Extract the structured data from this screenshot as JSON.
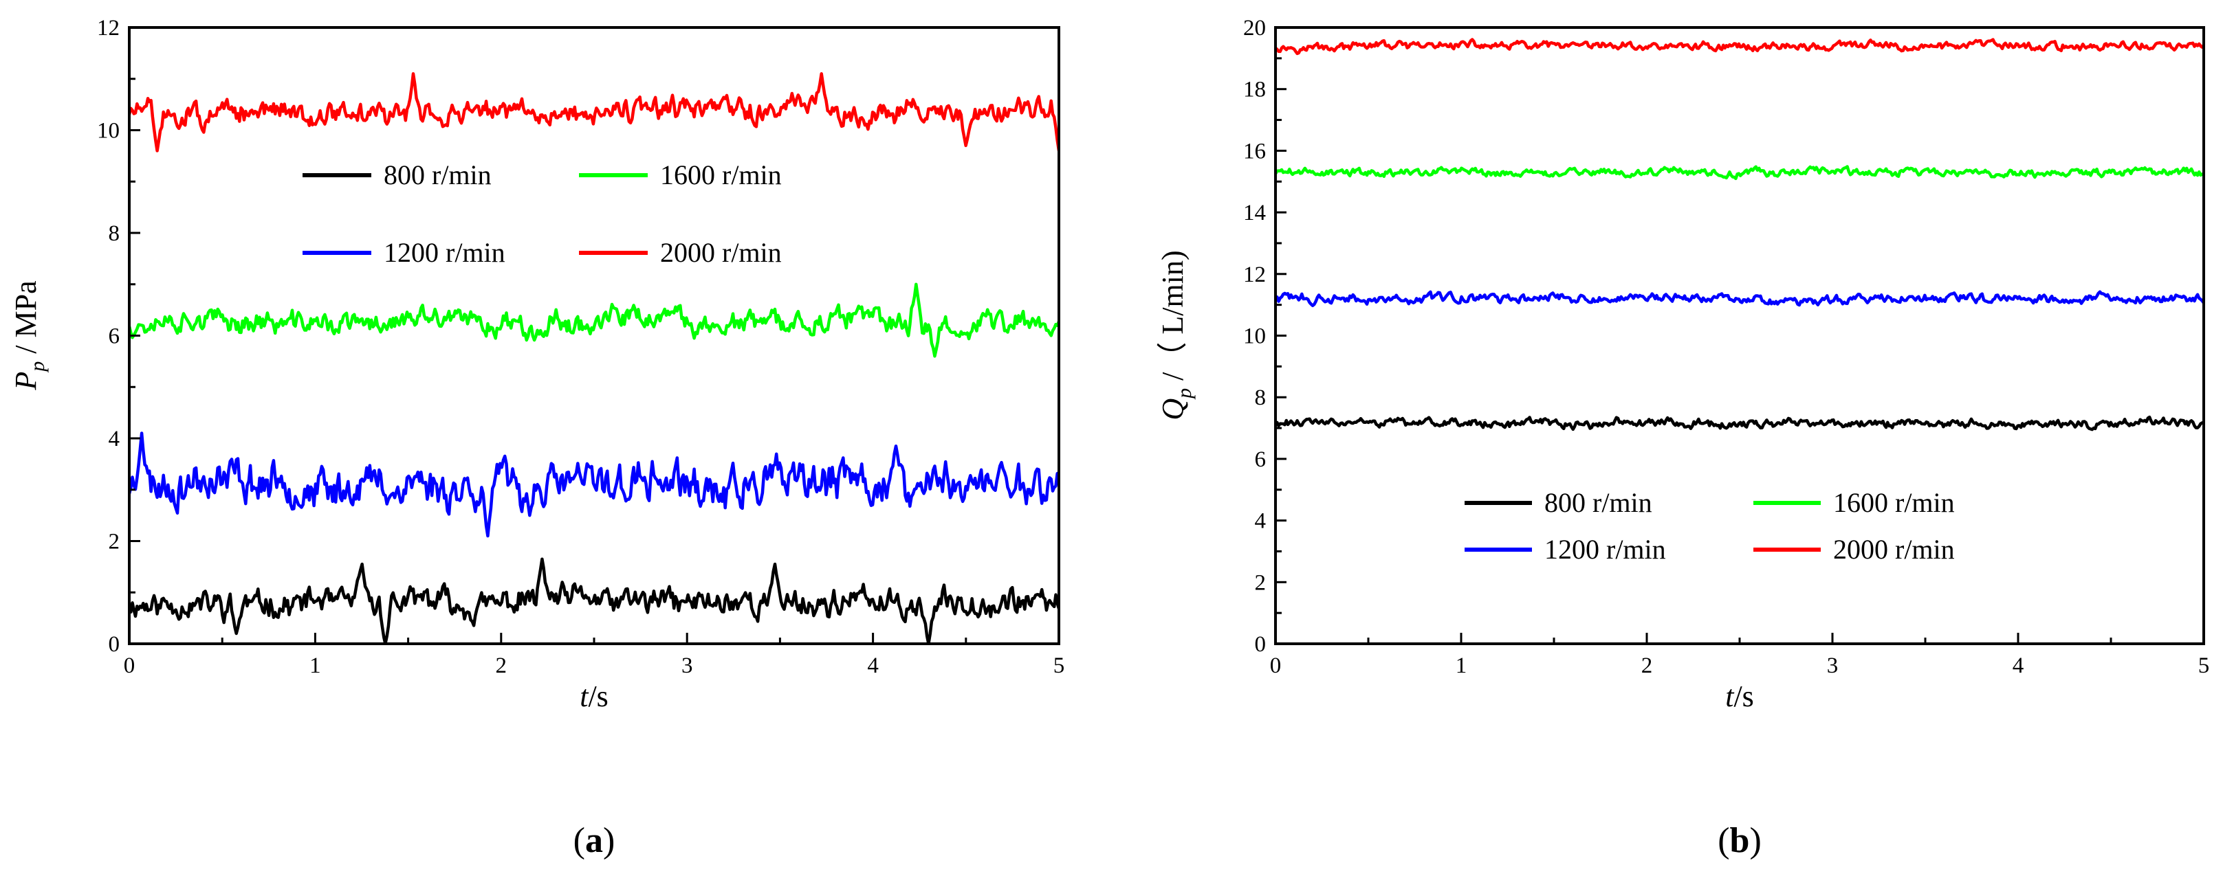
{
  "chart_data": [
    {
      "type": "line",
      "panel_label": "a",
      "xlabel_var": "t",
      "xlabel_unit": "/s",
      "ylabel_var": "P",
      "ylabel_sub": "p",
      "ylabel_unit": " / MPa",
      "xlim": [
        0,
        5
      ],
      "ylim": [
        0,
        12
      ],
      "xticks": [
        0,
        1,
        2,
        3,
        4,
        5
      ],
      "yticks": [
        0,
        2,
        4,
        6,
        8,
        10,
        12
      ],
      "legend_position": "upper-middle",
      "legend_order": [
        0,
        2,
        1,
        3
      ],
      "series": [
        {
          "name": "800 r/min",
          "color": "#000000",
          "mean": 0.8,
          "amplitude": 0.35,
          "seed": 11,
          "spikes": [
            [
              1.25,
              1.55
            ],
            [
              2.22,
              1.65
            ],
            [
              3.47,
              1.55
            ],
            [
              1.38,
              0.0
            ],
            [
              4.3,
              0.0
            ],
            [
              0.58,
              0.2
            ]
          ]
        },
        {
          "name": "1200 r/min",
          "color": "#0000ff",
          "mean": 3.1,
          "amplitude": 0.55,
          "seed": 23,
          "spikes": [
            [
              0.07,
              4.1
            ],
            [
              1.93,
              2.1
            ],
            [
              4.12,
              3.85
            ]
          ]
        },
        {
          "name": "1600 r/min",
          "color": "#00ff00",
          "mean": 6.25,
          "amplitude": 0.3,
          "seed": 37,
          "spikes": [
            [
              4.23,
              7.0
            ],
            [
              4.33,
              5.6
            ]
          ]
        },
        {
          "name": "2000 r/min",
          "color": "#ff0000",
          "mean": 10.35,
          "amplitude": 0.3,
          "seed": 51,
          "spikes": [
            [
              1.53,
              11.1
            ],
            [
              3.72,
              11.1
            ],
            [
              0.15,
              9.6
            ],
            [
              4.5,
              9.7
            ],
            [
              5.0,
              9.6
            ]
          ]
        }
      ]
    },
    {
      "type": "line",
      "panel_label": "b",
      "xlabel_var": "t",
      "xlabel_unit": "/s",
      "ylabel_var": "Q",
      "ylabel_sub": "p",
      "ylabel_unit": " /（ L/min)",
      "xlim": [
        0,
        5
      ],
      "ylim": [
        0,
        20
      ],
      "xticks": [
        0,
        1,
        2,
        3,
        4,
        5
      ],
      "yticks": [
        0,
        2,
        4,
        6,
        8,
        10,
        12,
        14,
        16,
        18,
        20
      ],
      "legend_position": "lower-middle",
      "legend_order": [
        0,
        2,
        1,
        3
      ],
      "series": [
        {
          "name": "800 r/min",
          "color": "#000000",
          "mean": 7.15,
          "amplitude": 0.18,
          "seed": 61,
          "spikes": []
        },
        {
          "name": "1200 r/min",
          "color": "#0000ff",
          "mean": 11.2,
          "amplitude": 0.2,
          "seed": 73,
          "spikes": []
        },
        {
          "name": "1600 r/min",
          "color": "#00ff00",
          "mean": 15.3,
          "amplitude": 0.17,
          "seed": 89,
          "spikes": []
        },
        {
          "name": "2000 r/min",
          "color": "#ff0000",
          "mean": 19.4,
          "amplitude": 0.17,
          "seed": 97,
          "spikes": []
        }
      ]
    }
  ]
}
